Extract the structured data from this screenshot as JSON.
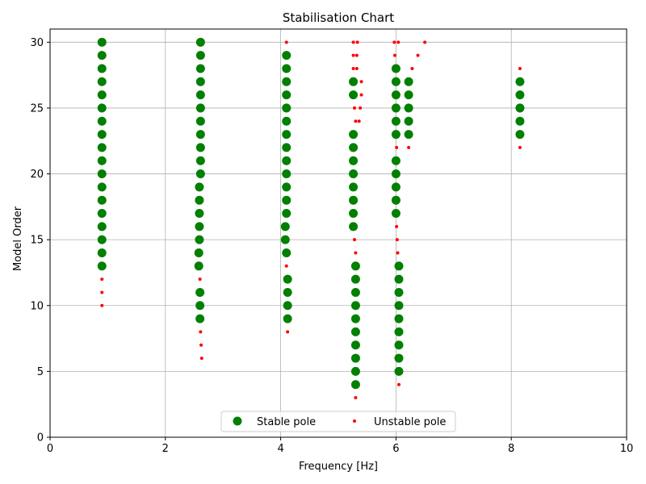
{
  "chart_data": {
    "type": "scatter",
    "title": "Stabilisation Chart",
    "xlabel": "Frequency [Hz]",
    "ylabel": "Model Order",
    "xlim": [
      0,
      10
    ],
    "ylim": [
      0,
      31
    ],
    "xticks": [
      0,
      2,
      4,
      6,
      8,
      10
    ],
    "yticks": [
      0,
      5,
      10,
      15,
      20,
      25,
      30
    ],
    "grid": true,
    "legend": {
      "placement": "bottom-center",
      "ncol": 2
    },
    "series": [
      {
        "name": "Stable pole",
        "color": "#008000",
        "marker": "large-circle",
        "points": [
          [
            0.9,
            13
          ],
          [
            0.9,
            14
          ],
          [
            0.9,
            15
          ],
          [
            0.9,
            16
          ],
          [
            0.9,
            17
          ],
          [
            0.9,
            18
          ],
          [
            0.9,
            19
          ],
          [
            0.9,
            20
          ],
          [
            0.9,
            21
          ],
          [
            0.9,
            22
          ],
          [
            0.9,
            23
          ],
          [
            0.9,
            24
          ],
          [
            0.9,
            25
          ],
          [
            0.9,
            26
          ],
          [
            0.9,
            27
          ],
          [
            0.9,
            28
          ],
          [
            0.9,
            29
          ],
          [
            0.9,
            30
          ],
          [
            2.6,
            9
          ],
          [
            2.6,
            10
          ],
          [
            2.6,
            11
          ],
          [
            2.58,
            13
          ],
          [
            2.58,
            14
          ],
          [
            2.59,
            15
          ],
          [
            2.59,
            16
          ],
          [
            2.59,
            17
          ],
          [
            2.59,
            18
          ],
          [
            2.59,
            19
          ],
          [
            2.61,
            20
          ],
          [
            2.61,
            21
          ],
          [
            2.61,
            22
          ],
          [
            2.61,
            23
          ],
          [
            2.61,
            24
          ],
          [
            2.61,
            25
          ],
          [
            2.61,
            26
          ],
          [
            2.61,
            27
          ],
          [
            2.61,
            28
          ],
          [
            2.61,
            29
          ],
          [
            2.61,
            30
          ],
          [
            4.12,
            9
          ],
          [
            4.12,
            10
          ],
          [
            4.12,
            11
          ],
          [
            4.12,
            12
          ],
          [
            4.1,
            14
          ],
          [
            4.08,
            15
          ],
          [
            4.08,
            16
          ],
          [
            4.1,
            17
          ],
          [
            4.1,
            18
          ],
          [
            4.1,
            19
          ],
          [
            4.1,
            20
          ],
          [
            4.1,
            21
          ],
          [
            4.1,
            22
          ],
          [
            4.1,
            23
          ],
          [
            4.1,
            24
          ],
          [
            4.1,
            25
          ],
          [
            4.1,
            26
          ],
          [
            4.1,
            27
          ],
          [
            4.1,
            28
          ],
          [
            4.1,
            29
          ],
          [
            5.3,
            4
          ],
          [
            5.3,
            5
          ],
          [
            5.3,
            6
          ],
          [
            5.3,
            7
          ],
          [
            5.3,
            8
          ],
          [
            5.3,
            9
          ],
          [
            5.3,
            10
          ],
          [
            5.3,
            11
          ],
          [
            5.3,
            12
          ],
          [
            5.3,
            13
          ],
          [
            5.26,
            16
          ],
          [
            5.26,
            17
          ],
          [
            5.26,
            18
          ],
          [
            5.26,
            19
          ],
          [
            5.26,
            20
          ],
          [
            5.26,
            21
          ],
          [
            5.26,
            22
          ],
          [
            5.26,
            23
          ],
          [
            5.26,
            26
          ],
          [
            5.26,
            27
          ],
          [
            6.05,
            5
          ],
          [
            6.05,
            6
          ],
          [
            6.05,
            7
          ],
          [
            6.05,
            8
          ],
          [
            6.05,
            9
          ],
          [
            6.05,
            10
          ],
          [
            6.05,
            11
          ],
          [
            6.05,
            12
          ],
          [
            6.05,
            13
          ],
          [
            6.0,
            17
          ],
          [
            6.0,
            18
          ],
          [
            6.0,
            19
          ],
          [
            6.0,
            20
          ],
          [
            6.0,
            21
          ],
          [
            6.0,
            23
          ],
          [
            6.0,
            24
          ],
          [
            6.0,
            25
          ],
          [
            6.0,
            26
          ],
          [
            6.0,
            27
          ],
          [
            6.0,
            28
          ],
          [
            6.22,
            23
          ],
          [
            6.22,
            24
          ],
          [
            6.22,
            25
          ],
          [
            6.22,
            26
          ],
          [
            6.22,
            27
          ],
          [
            8.15,
            23
          ],
          [
            8.15,
            24
          ],
          [
            8.15,
            25
          ],
          [
            8.15,
            26
          ],
          [
            8.15,
            27
          ]
        ]
      },
      {
        "name": "Unstable pole",
        "color": "#ff0000",
        "marker": "small-dot",
        "points": [
          [
            0.9,
            10
          ],
          [
            0.9,
            11
          ],
          [
            0.9,
            12
          ],
          [
            2.63,
            6
          ],
          [
            2.62,
            7
          ],
          [
            2.61,
            8
          ],
          [
            2.6,
            12
          ],
          [
            4.12,
            8
          ],
          [
            4.1,
            13
          ],
          [
            4.1,
            30
          ],
          [
            5.3,
            3
          ],
          [
            5.3,
            14
          ],
          [
            5.28,
            15
          ],
          [
            5.3,
            24
          ],
          [
            5.36,
            24
          ],
          [
            5.28,
            25
          ],
          [
            5.38,
            25
          ],
          [
            5.4,
            26
          ],
          [
            5.4,
            27
          ],
          [
            5.26,
            28
          ],
          [
            5.32,
            28
          ],
          [
            5.26,
            29
          ],
          [
            5.32,
            29
          ],
          [
            5.26,
            30
          ],
          [
            5.33,
            30
          ],
          [
            6.05,
            4
          ],
          [
            6.03,
            14
          ],
          [
            6.02,
            15
          ],
          [
            6.01,
            16
          ],
          [
            6.01,
            22
          ],
          [
            5.98,
            29
          ],
          [
            5.97,
            30
          ],
          [
            6.04,
            30
          ],
          [
            6.22,
            22
          ],
          [
            6.28,
            28
          ],
          [
            6.38,
            29
          ],
          [
            6.5,
            30
          ],
          [
            8.15,
            22
          ],
          [
            8.15,
            28
          ]
        ]
      }
    ]
  }
}
